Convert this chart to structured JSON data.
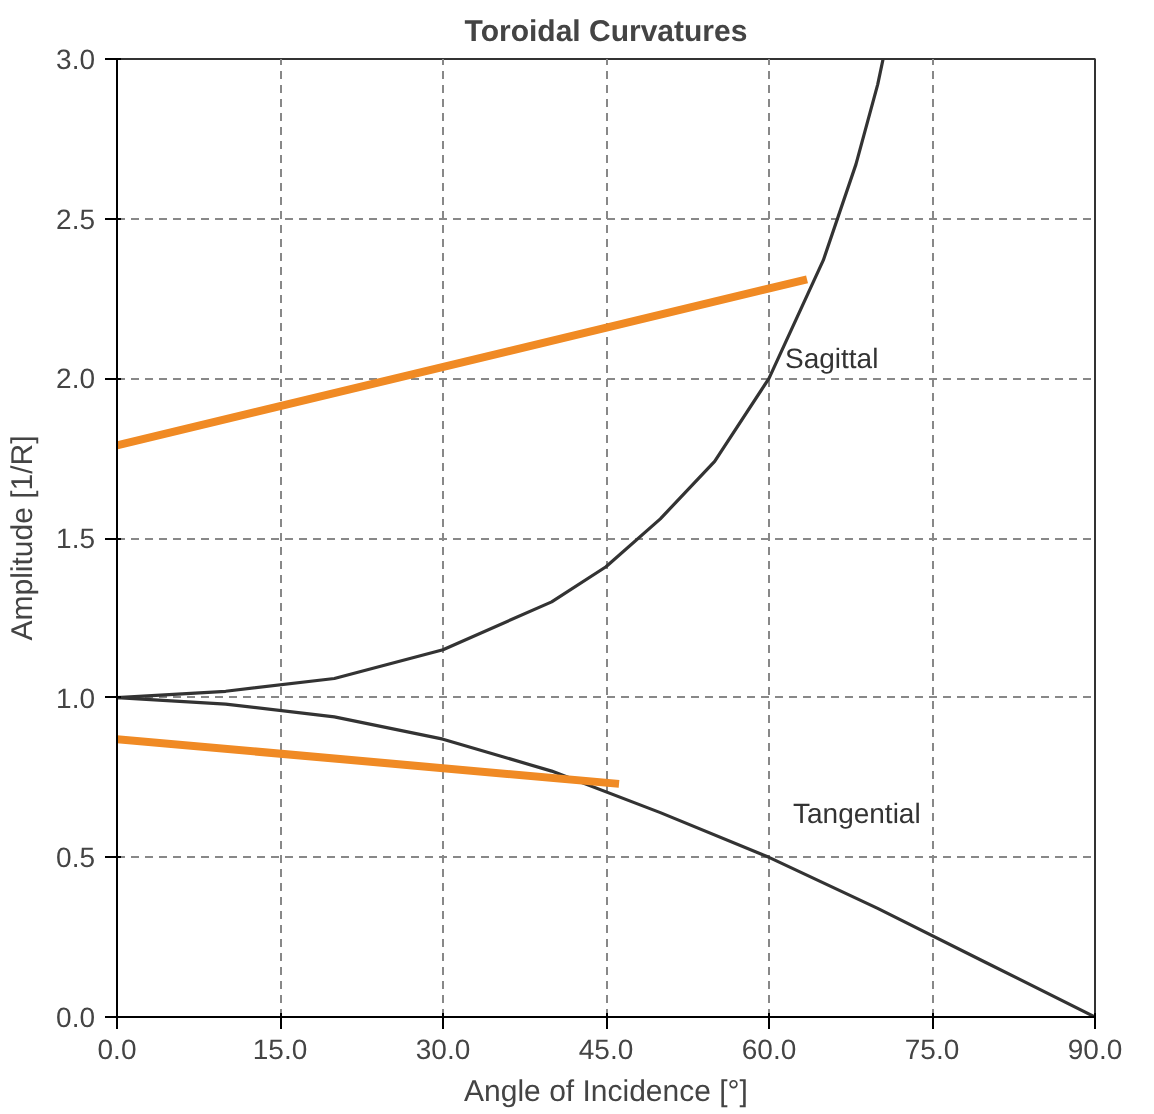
{
  "chart_data": {
    "type": "line",
    "title": "Toroidal Curvatures",
    "xlabel": "Angle of Incidence [°]",
    "ylabel": "Amplitude [1/R]",
    "xlim": [
      0,
      90
    ],
    "ylim": [
      0,
      3
    ],
    "xticks": [
      {
        "value": 0,
        "label": "0.0"
      },
      {
        "value": 15,
        "label": "15.0"
      },
      {
        "value": 30,
        "label": "30.0"
      },
      {
        "value": 45,
        "label": "45.0"
      },
      {
        "value": 60,
        "label": "60.0"
      },
      {
        "value": 75,
        "label": "75.0"
      },
      {
        "value": 90,
        "label": "90.0"
      }
    ],
    "yticks": [
      {
        "value": 0,
        "label": "0.0"
      },
      {
        "value": 0.5,
        "label": "0.5"
      },
      {
        "value": 1,
        "label": "1.0"
      },
      {
        "value": 1.5,
        "label": "1.5"
      },
      {
        "value": 2,
        "label": "2.0"
      },
      {
        "value": 2.5,
        "label": "2.5"
      },
      {
        "value": 3,
        "label": "3.0"
      }
    ],
    "grid": true,
    "series": [
      {
        "name": "Sagittal",
        "color": "#333333",
        "x": [
          0,
          10,
          20,
          30,
          40,
          45,
          50,
          55,
          60,
          65,
          68,
          70,
          70.5
        ],
        "values": [
          1.0,
          1.02,
          1.06,
          1.15,
          1.3,
          1.41,
          1.56,
          1.74,
          2.0,
          2.37,
          2.67,
          2.92,
          3.0
        ]
      },
      {
        "name": "Tangential",
        "color": "#333333",
        "x": [
          0,
          10,
          20,
          30,
          40,
          50,
          60,
          70,
          80,
          90
        ],
        "values": [
          1.0,
          0.98,
          0.94,
          0.87,
          0.77,
          0.64,
          0.5,
          0.34,
          0.17,
          0.0
        ]
      },
      {
        "color": "#f08a24",
        "x": [
          0,
          63.5
        ],
        "values": [
          1.79,
          2.31
        ]
      },
      {
        "color": "#f08a24",
        "x": [
          0,
          46.2
        ],
        "values": [
          0.87,
          0.73
        ]
      }
    ]
  }
}
